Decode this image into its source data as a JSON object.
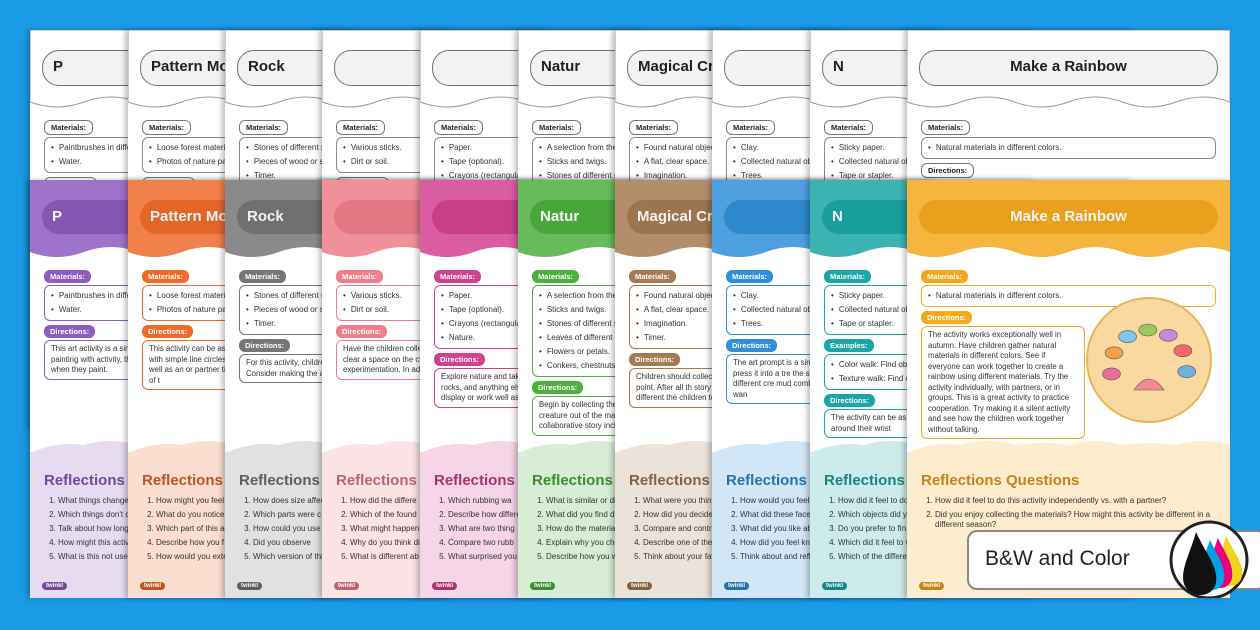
{
  "labels": {
    "materials": "Materials:",
    "directions": "Directions:",
    "examples": "Examples:",
    "logo": "twinkl"
  },
  "badge": "B&W and Color",
  "cards": [
    {
      "title": "P",
      "color": "#8e5bbf",
      "materials": [
        "Paintbrushes in differ",
        "Water."
      ],
      "directions": "This art activity is a simp invitation. Provide the and a water source, explore painting with activity, there is no find can paint rocks, tree and then reflect on when they paint.",
      "reflections": "Reflections",
      "questions": [
        "What things change",
        "Which things don't c",
        "Talk about how long",
        "How might this activ",
        "What is this not usef"
      ]
    },
    {
      "title": "Pattern Mo",
      "color": "#f06a2a",
      "materials": [
        "Loose forest materi",
        "Photos of nature pat"
      ],
      "directions": "This activity can be as you need it to be for yo is to collect loose materi Starting with simple line circles and more intricat with a study of nature o activity works well as an or partner time. It is very need for your children. T about the meaning of t",
      "reflections": "Reflections",
      "questions": [
        "How might you feel",
        "What do you notice around you?",
        "Which part of this ac",
        "Describe how you f",
        "How would you exte"
      ]
    },
    {
      "title": "Rock",
      "color": "#767676",
      "materials": [
        "Stones of different sha",
        "Pieces of wood or stick",
        "Timer."
      ],
      "directions": "For this activity, children c It is fun to experiment with independence vs. working Consider making the activi",
      "reflections": "Reflections",
      "questions": [
        "How does size affec",
        "Which parts were c",
        "How could you use",
        "Did you observe",
        "Which version of thi"
      ]
    },
    {
      "color": "#ef7d8a",
      "materials": [
        "Various sticks.",
        "Dirt or soil."
      ],
      "directions": "Have the children colle objects, and use them fo need three to five differe how to clear a space on the children to make dra This activity is perfect fo experimentation. In additi or drawing techniques.",
      "reflections": "Reflections",
      "questions": [
        "How did the differe",
        "Which of the found",
        "What might happen",
        "Why do you think di",
        "What is different ab like paper or whiteb"
      ]
    },
    {
      "color": "#d2418f",
      "materials": [
        "Paper.",
        "Tape (optional).",
        "Crayons (rectangula",
        "Nature."
      ],
      "directions": "Explore nature and take over something, for examp shape and details of the rocks, and anything else activity more interesting. on top of each other and display or work well as",
      "reflections": "Reflections",
      "questions": [
        "Which rubbing wa",
        "Describe how differe",
        "What are two thing",
        "Compare two rubb",
        "What surprised you"
      ]
    },
    {
      "title": "Natur",
      "color": "#4caf3e",
      "materials": [
        "A selection from the foll",
        "Sticks and twigs.",
        "Stones of different si",
        "Leaves of different c",
        "Flowers or petals.",
        "Conkers, chestnuts, c"
      ],
      "directions": "Begin by collecting the they will be using the ma can be helpful to have a creature out of the materi ending point. After all th story about their magica a collaborative story incl",
      "reflections": "Reflections",
      "questions": [
        "What is similar or diffe",
        "What did you find d",
        "How do the material",
        "Explain why you cho",
        "Describe how you w"
      ]
    },
    {
      "title": "Magical Cr",
      "color": "#a47a54",
      "materials": [
        "Found natural object",
        "A flat, clear space.",
        "Imagination.",
        "Timer."
      ],
      "directions": "Children should collect Ask them to find a flat, c creature out of the mate ending point. After all th story about their magica self-portrait using their portrait will be different the children to look at th",
      "reflections": "Reflections",
      "questions": [
        "What were you think",
        "How did you decide",
        "Compare and contr Which did you prefe",
        "Describe one of the",
        "Think about your fav Are the two the sam"
      ]
    },
    {
      "color": "#2f8fd8",
      "materials": [
        "Clay.",
        "Collected natural ob",
        "Trees."
      ],
      "directions": "The art prompt is a sim only requires one extra Give each child some cl how to press it into a tre the sculpture. Next, child make a face. Have the st each other's different cre mud combinations if the Using these natural mate temporary. It might wan",
      "reflections": "Reflections",
      "questions": [
        "How would you feel",
        "What did these faces",
        "What did you like ab",
        "How did you feel kno",
        "Think about and refle"
      ]
    },
    {
      "title": "N",
      "color": "#1aa6a6",
      "materials": [
        "Sticky paper.",
        "Collected natural obj",
        "Tape or stapler."
      ],
      "examples": [
        "Color walk: Find obje",
        "Texture walk: Find obje a specific texture."
      ],
      "directions": "The activity can be as si can use a strip of sticky Collect objects as the gro paper around their wrist",
      "reflections": "Reflections",
      "questions": [
        "How did it feel to do th",
        "Which objects did you",
        "Do you prefer to fin type of object to colle",
        "Which did it feel to wo",
        "Which of the differen texture, and size."
      ]
    },
    {
      "title": "Make a Rainbow",
      "color": "#f5a81c",
      "materials": [
        "Natural materials in different colors."
      ],
      "directions": "The activity works exceptionally well in autumn. Have children gather natural materials in different colors. See if everyone can work together to create a rainbow using different materials. Try the activity individually, with partners, or in groups. This is a great activity to practice cooperation. Try making it a silent activity and see how the children work together without talking.",
      "reflections": "Reflections Questions",
      "questions": [
        "How did it feel to do this activity independently vs. with a partner?",
        "Did you enjoy collecting the materials? How might this activity be different in a different season?"
      ]
    }
  ]
}
